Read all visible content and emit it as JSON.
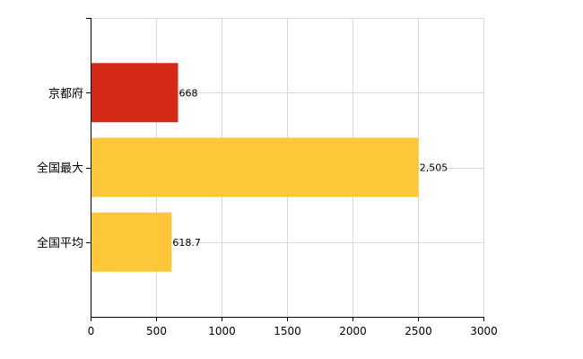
{
  "chart_data": {
    "type": "bar",
    "orientation": "horizontal",
    "categories": [
      "京都府",
      "全国最大",
      "全国平均"
    ],
    "values": [
      668,
      2505,
      618.7
    ],
    "data_labels": [
      "668",
      "2,505",
      "618.7"
    ],
    "colors": [
      "#d42a17",
      "#fcc83a",
      "#fcc83a"
    ],
    "x_ticks": [
      "0",
      "500",
      "1000",
      "1500",
      "2000",
      "2500",
      "3000"
    ],
    "xlim": [
      0,
      3000
    ],
    "grid": true,
    "legend": "none",
    "title": "",
    "xlabel": "",
    "ylabel": ""
  }
}
